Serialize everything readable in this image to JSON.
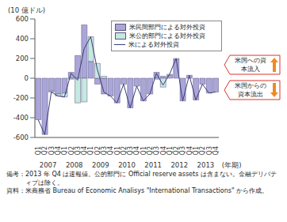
{
  "chart_data": {
    "type": "bar",
    "stacked": true,
    "y_label": "(10 億ドル)",
    "x_label": "(年期)",
    "categories": [
      "Q1",
      "Q2",
      "Q3",
      "Q4",
      "Q1",
      "Q2",
      "Q3",
      "Q4",
      "Q1",
      "Q2",
      "Q3",
      "Q4",
      "Q1",
      "Q2",
      "Q3",
      "Q4",
      "Q1",
      "Q2",
      "Q3",
      "Q4",
      "Q1",
      "Q2",
      "Q3",
      "Q4",
      "Q1",
      "Q2",
      "Q3",
      "Q4"
    ],
    "years": [
      "2007",
      "2008",
      "2009",
      "2010",
      "2011",
      "2012",
      "2013"
    ],
    "series": [
      {
        "name": "米民間部門による対外投資",
        "type": "bar",
        "color": "#aaa6d8",
        "values": [
          -420,
          -570,
          -130,
          -160,
          -150,
          60,
          230,
          540,
          170,
          -60,
          -160,
          -180,
          -250,
          -60,
          -300,
          -80,
          -230,
          -160,
          60,
          20,
          30,
          190,
          -230,
          30,
          -220,
          -60,
          -150,
          -140
        ]
      },
      {
        "name": "米公的部門による対外投資",
        "type": "bar",
        "color": "#c5e8df",
        "values": [
          0,
          0,
          -10,
          -20,
          -40,
          -10,
          -250,
          -240,
          250,
          150,
          20,
          0,
          0,
          0,
          0,
          0,
          0,
          0,
          -10,
          -90,
          10,
          10,
          0,
          0,
          0,
          0,
          0,
          0
        ]
      },
      {
        "name": "米による対外投資",
        "type": "line",
        "color": "#3c3c78",
        "values": [
          -420,
          -570,
          -140,
          -180,
          -190,
          50,
          -20,
          300,
          420,
          90,
          -140,
          -180,
          -250,
          -60,
          -300,
          -80,
          -230,
          -160,
          50,
          -70,
          40,
          200,
          -230,
          30,
          -220,
          -60,
          -150,
          -140
        ]
      }
    ],
    "ylim": [
      -600,
      600
    ],
    "yticks": [
      -600,
      -400,
      -200,
      0,
      200,
      400,
      600
    ],
    "grid": false,
    "legend": "upper right",
    "annotations": [
      "米国への資本流入",
      "米国からの資本流出"
    ],
    "notes": [
      {
        "label": "備考：",
        "text": "2013 年 Q4 は速報値。公的部門に Official reserve assets は含まない。金融デリバティブは除く。"
      },
      {
        "label": "資料：",
        "text": "米商務省 Bureau of Economic Analisys \"International Transactions\" から作成。"
      }
    ]
  }
}
